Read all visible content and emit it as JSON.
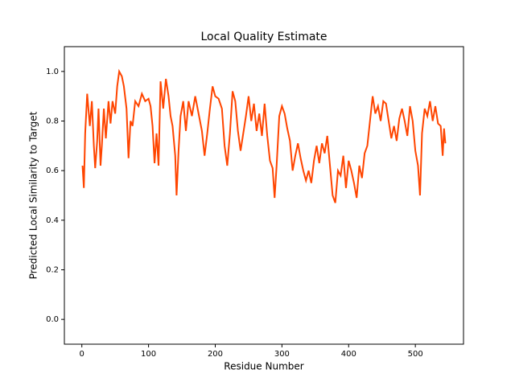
{
  "chart_data": {
    "type": "line",
    "title": "Local Quality Estimate",
    "x_label": "Residue Number",
    "y_label": "Predicted Local Similarity to Target",
    "x": [
      1,
      3,
      5,
      8,
      12,
      15,
      18,
      20,
      23,
      25,
      28,
      30,
      33,
      36,
      40,
      43,
      46,
      50,
      53,
      56,
      60,
      63,
      67,
      70,
      73,
      76,
      80,
      85,
      90,
      95,
      100,
      103,
      106,
      109,
      112,
      115,
      118,
      122,
      126,
      130,
      133,
      136,
      140,
      142,
      145,
      148,
      152,
      156,
      160,
      165,
      170,
      175,
      180,
      184,
      188,
      192,
      196,
      200,
      205,
      210,
      214,
      218,
      222,
      226,
      230,
      234,
      238,
      242,
      246,
      250,
      254,
      258,
      262,
      266,
      270,
      274,
      278,
      282,
      286,
      289,
      292,
      296,
      300,
      304,
      308,
      312,
      316,
      320,
      324,
      328,
      332,
      336,
      340,
      344,
      348,
      352,
      356,
      360,
      364,
      368,
      372,
      376,
      380,
      384,
      388,
      392,
      396,
      400,
      404,
      408,
      412,
      416,
      420,
      424,
      428,
      432,
      436,
      440,
      444,
      448,
      452,
      456,
      460,
      464,
      468,
      472,
      476,
      480,
      484,
      488,
      492,
      496,
      500,
      504,
      507,
      510,
      514,
      518,
      522,
      526,
      530,
      534,
      538,
      541,
      543,
      545
    ],
    "series": [
      {
        "color": "#ff4500",
        "values": [
          0.62,
          0.53,
          0.75,
          0.91,
          0.78,
          0.88,
          0.7,
          0.61,
          0.72,
          0.85,
          0.62,
          0.7,
          0.85,
          0.73,
          0.88,
          0.79,
          0.88,
          0.83,
          0.94,
          1.0,
          0.98,
          0.94,
          0.85,
          0.65,
          0.8,
          0.78,
          0.88,
          0.86,
          0.91,
          0.88,
          0.89,
          0.86,
          0.78,
          0.63,
          0.75,
          0.62,
          0.96,
          0.85,
          0.97,
          0.9,
          0.82,
          0.78,
          0.66,
          0.5,
          0.68,
          0.82,
          0.88,
          0.76,
          0.88,
          0.82,
          0.9,
          0.83,
          0.76,
          0.66,
          0.75,
          0.85,
          0.94,
          0.9,
          0.89,
          0.85,
          0.7,
          0.62,
          0.75,
          0.92,
          0.88,
          0.76,
          0.68,
          0.75,
          0.82,
          0.9,
          0.8,
          0.87,
          0.76,
          0.83,
          0.74,
          0.87,
          0.74,
          0.64,
          0.61,
          0.49,
          0.62,
          0.82,
          0.86,
          0.83,
          0.77,
          0.72,
          0.6,
          0.66,
          0.71,
          0.65,
          0.6,
          0.56,
          0.6,
          0.55,
          0.64,
          0.7,
          0.63,
          0.71,
          0.67,
          0.74,
          0.62,
          0.5,
          0.47,
          0.6,
          0.58,
          0.66,
          0.53,
          0.64,
          0.6,
          0.55,
          0.49,
          0.62,
          0.57,
          0.67,
          0.7,
          0.8,
          0.9,
          0.83,
          0.86,
          0.8,
          0.88,
          0.87,
          0.8,
          0.73,
          0.78,
          0.72,
          0.81,
          0.85,
          0.8,
          0.74,
          0.86,
          0.8,
          0.68,
          0.62,
          0.5,
          0.75,
          0.85,
          0.82,
          0.88,
          0.8,
          0.86,
          0.79,
          0.78,
          0.66,
          0.77,
          0.71
        ]
      }
    ],
    "xlim": [
      -26.2,
      572.2
    ],
    "xticks": [
      0,
      100,
      200,
      300,
      400,
      500
    ],
    "ylim": [
      -0.1,
      1.1
    ],
    "yticks": [
      {
        "value": 0,
        "label": "0.0"
      },
      0.2,
      0.4,
      0.6,
      0.8,
      {
        "value": 1,
        "label": "1.0"
      }
    ]
  }
}
